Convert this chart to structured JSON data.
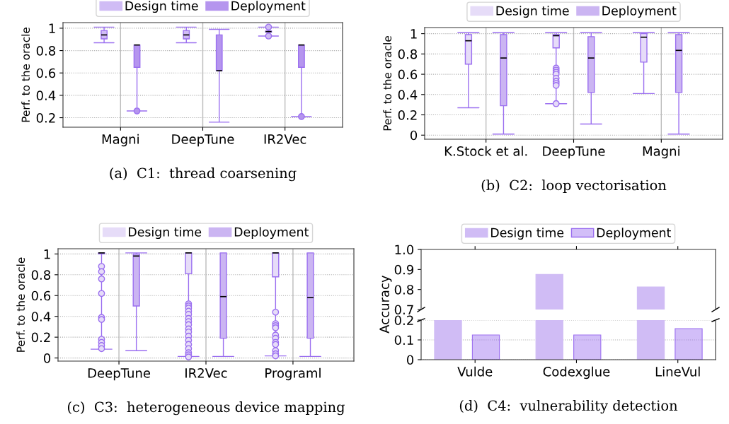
{
  "chart_data": [
    {
      "type": "box",
      "categories": [
        "Magni",
        "DeepTune",
        "IR2Vec"
      ],
      "ylabel": "Perf. to the oracle",
      "ylim": [
        0.115,
        1.05
      ],
      "yticks": [
        0.2,
        0.4,
        0.6,
        0.8,
        1
      ],
      "grid": true,
      "legend": "top",
      "annotations": [
        "(a)  C1:  thread coarsening"
      ],
      "series": [
        {
          "name": "Design time",
          "color": "#d0bcf5",
          "boxes": [
            {
              "low": 0.87,
              "q1": 0.905,
              "median": 0.94,
              "q3": 0.98,
              "high": 1.01
            },
            {
              "low": 0.87,
              "q1": 0.905,
              "median": 0.94,
              "q3": 0.98,
              "high": 1.01
            },
            {
              "low": 0.93,
              "q1": 0.965,
              "median": 0.97,
              "q3": 0.975,
              "high": 1.01,
              "outliers": [
                0.93,
                1.01
              ]
            }
          ]
        },
        {
          "name": "Deployment",
          "color": "#b595ee",
          "boxes": [
            {
              "low": 0.26,
              "q1": 0.65,
              "median": 0.85,
              "q3": 0.85,
              "high": 0.85,
              "outliers": [
                0.26
              ]
            },
            {
              "low": 0.16,
              "q1": 0.62,
              "median": 0.62,
              "q3": 0.94,
              "high": 0.99
            },
            {
              "low": 0.21,
              "q1": 0.65,
              "median": 0.85,
              "q3": 0.85,
              "high": 0.85,
              "outliers": [
                0.21
              ]
            }
          ]
        }
      ]
    },
    {
      "type": "box",
      "categories": [
        "K.Stock et al.",
        "DeepTune",
        "Magni"
      ],
      "ylabel": "Perf. to the oracle",
      "ylim": [
        -0.04,
        1.06
      ],
      "yticks": [
        0,
        0.2,
        0.4,
        0.6,
        0.8,
        1
      ],
      "grid": true,
      "legend": "top",
      "annotations": [
        "(b)  C2:  loop vectorisation"
      ],
      "series": [
        {
          "name": "Design time",
          "color": "#e6dcf8",
          "boxes": [
            {
              "low": 0.27,
              "q1": 0.7,
              "median": 0.93,
              "q3": 0.99,
              "high": 1.01
            },
            {
              "low": 0.31,
              "q1": 0.86,
              "median": 0.98,
              "q3": 0.99,
              "high": 1.01,
              "outliers": [
                0.66,
                0.64,
                0.62,
                0.6,
                0.56,
                0.53,
                0.51,
                0.49,
                0.31
              ]
            },
            {
              "low": 0.41,
              "q1": 0.72,
              "median": 0.965,
              "q3": 1.0,
              "high": 1.01
            }
          ]
        },
        {
          "name": "Deployment",
          "color": "#cbb5f2",
          "boxes": [
            {
              "low": 0.01,
              "q1": 0.29,
              "median": 0.76,
              "q3": 0.99,
              "high": 1.01
            },
            {
              "low": 0.11,
              "q1": 0.42,
              "median": 0.76,
              "q3": 0.97,
              "high": 1.01
            },
            {
              "low": 0.01,
              "q1": 0.42,
              "median": 0.835,
              "q3": 0.99,
              "high": 1.01
            }
          ]
        }
      ]
    },
    {
      "type": "box",
      "categories": [
        "DeepTune",
        "IR2Vec",
        "Programl"
      ],
      "ylabel": "Perf. to the oracle",
      "ylim": [
        -0.03,
        1.05
      ],
      "yticks": [
        0,
        0.2,
        0.4,
        0.6,
        0.8,
        1
      ],
      "grid": true,
      "legend": "top",
      "annotations": [
        "(c)  C3:  heterogeneous device mapping"
      ],
      "series": [
        {
          "name": "Design time",
          "color": "#e6dcf8",
          "boxes": [
            {
              "low": 0.085,
              "q1": 1.0,
              "median": 1.01,
              "q3": 1.01,
              "high": 1.01,
              "outliers": [
                0.88,
                0.83,
                0.76,
                0.62,
                0.39,
                0.37,
                0.18,
                0.15,
                0.12,
                0.09
              ]
            },
            {
              "low": 0.015,
              "q1": 0.81,
              "median": 1.01,
              "q3": 1.01,
              "high": 1.01,
              "outliers": [
                0.52,
                0.5,
                0.48,
                0.45,
                0.42,
                0.38,
                0.35,
                0.32,
                0.28,
                0.25,
                0.21,
                0.17,
                0.13,
                0.09,
                0.05,
                0.03,
                0.01
              ]
            },
            {
              "low": 0.02,
              "q1": 0.78,
              "median": 1.01,
              "q3": 1.01,
              "high": 1.01,
              "outliers": [
                0.44,
                0.33,
                0.31,
                0.29,
                0.22,
                0.19,
                0.15,
                0.13,
                0.07,
                0.04,
                0.02
              ]
            }
          ]
        },
        {
          "name": "Deployment",
          "color": "#cbb5f2",
          "boxes": [
            {
              "low": 0.07,
              "q1": 0.5,
              "median": 0.98,
              "q3": 1.0,
              "high": 1.01
            },
            {
              "low": 0.015,
              "q1": 0.19,
              "median": 0.59,
              "q3": 1.01,
              "high": 1.01
            },
            {
              "low": 0.015,
              "q1": 0.19,
              "median": 0.58,
              "q3": 1.01,
              "high": 1.01
            }
          ]
        }
      ]
    },
    {
      "type": "bar",
      "categories": [
        null,
        null,
        null
      ],
      "ylim": [
        0.7,
        1.0
      ],
      "yticks": [
        0.7,
        0.8,
        0.9,
        {
          "value": 1.0,
          "label": "1.0"
        }
      ],
      "tick_labels": "y",
      "legend": "top",
      "series": [
        {
          "name": "Design time",
          "color": "#d0bcf5",
          "values": [
            null,
            0.875,
            0.813
          ]
        },
        {
          "name": "Deployment",
          "color": "#9b6ff0",
          "values": [
            null,
            null,
            null
          ]
        }
      ]
    },
    {
      "type": "bar",
      "categories": [
        "Vulde",
        "Codexglue",
        "LineVul"
      ],
      "ylabel": "Accuracy",
      "ylim": [
        0,
        0.2
      ],
      "yticks": [
        0,
        0.1,
        0.2
      ],
      "grid": "y",
      "annotations": [
        "(d)  C4:  vulnerability detection"
      ],
      "series": [
        {
          "color": "#d0bcf5",
          "values": [
            0.2,
            0.2,
            0.2
          ]
        },
        {
          "color": "#9b6ff0",
          "values": [
            0.125,
            0.125,
            0.157
          ]
        }
      ]
    }
  ]
}
